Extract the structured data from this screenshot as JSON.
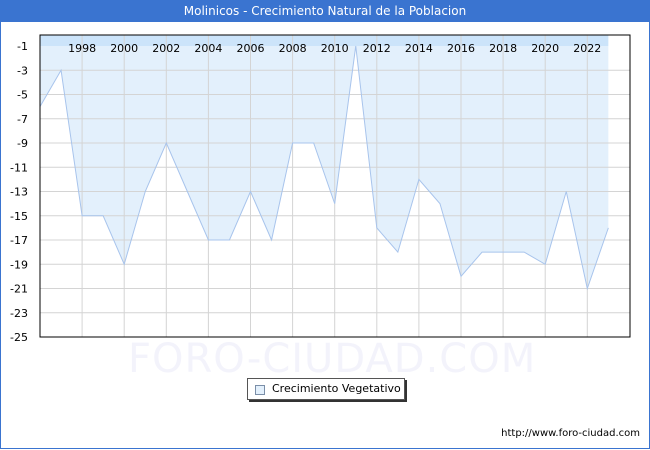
{
  "header": {
    "title": "Molinicos - Crecimiento Natural de la Poblacion"
  },
  "watermark": "FORO-CIUDAD.COM",
  "footer": {
    "url": "http://www.foro-ciudad.com"
  },
  "legend": {
    "label": "Crecimiento Vegetativo",
    "swatch_color": "#e3f0fc"
  },
  "colors": {
    "title_bar": "#3a74d0",
    "fill": "#e3f0fc",
    "top_band": "#cce4fa",
    "line": "#a8c4ec",
    "grid": "#d4d4d4",
    "axis": "#000000"
  },
  "chart_data": {
    "type": "area",
    "title": "Molinicos - Crecimiento Natural de la Poblacion",
    "xlabel": "",
    "ylabel": "",
    "x": [
      1996,
      1997,
      1998,
      1999,
      2000,
      2001,
      2002,
      2003,
      2004,
      2005,
      2006,
      2007,
      2008,
      2009,
      2010,
      2011,
      2012,
      2013,
      2014,
      2015,
      2016,
      2017,
      2018,
      2019,
      2020,
      2021,
      2022,
      2023
    ],
    "series": [
      {
        "name": "Crecimiento Vegetativo",
        "values": [
          -6,
          -3,
          -15,
          -15,
          -19,
          -13,
          -9,
          -13,
          -17,
          -17,
          -13,
          -17,
          -9,
          -9,
          -14,
          -1,
          -16,
          -18,
          -12,
          -14,
          -20,
          -18,
          -18,
          -18,
          -19,
          -13,
          -21,
          -16
        ]
      }
    ],
    "x_tick_labels": [
      "1998",
      "2000",
      "2002",
      "2004",
      "2006",
      "2008",
      "2010",
      "2012",
      "2014",
      "2016",
      "2018",
      "2020",
      "2022"
    ],
    "y_tick_labels": [
      "-1",
      "-3",
      "-5",
      "-7",
      "-9",
      "-11",
      "-13",
      "-15",
      "-17",
      "-19",
      "-21",
      "-23",
      "-25"
    ],
    "ylim": [
      -25,
      -1
    ],
    "xlim": [
      1996,
      2024
    ],
    "grid": true,
    "legend_position": "bottom-center",
    "fill_to": "top"
  }
}
